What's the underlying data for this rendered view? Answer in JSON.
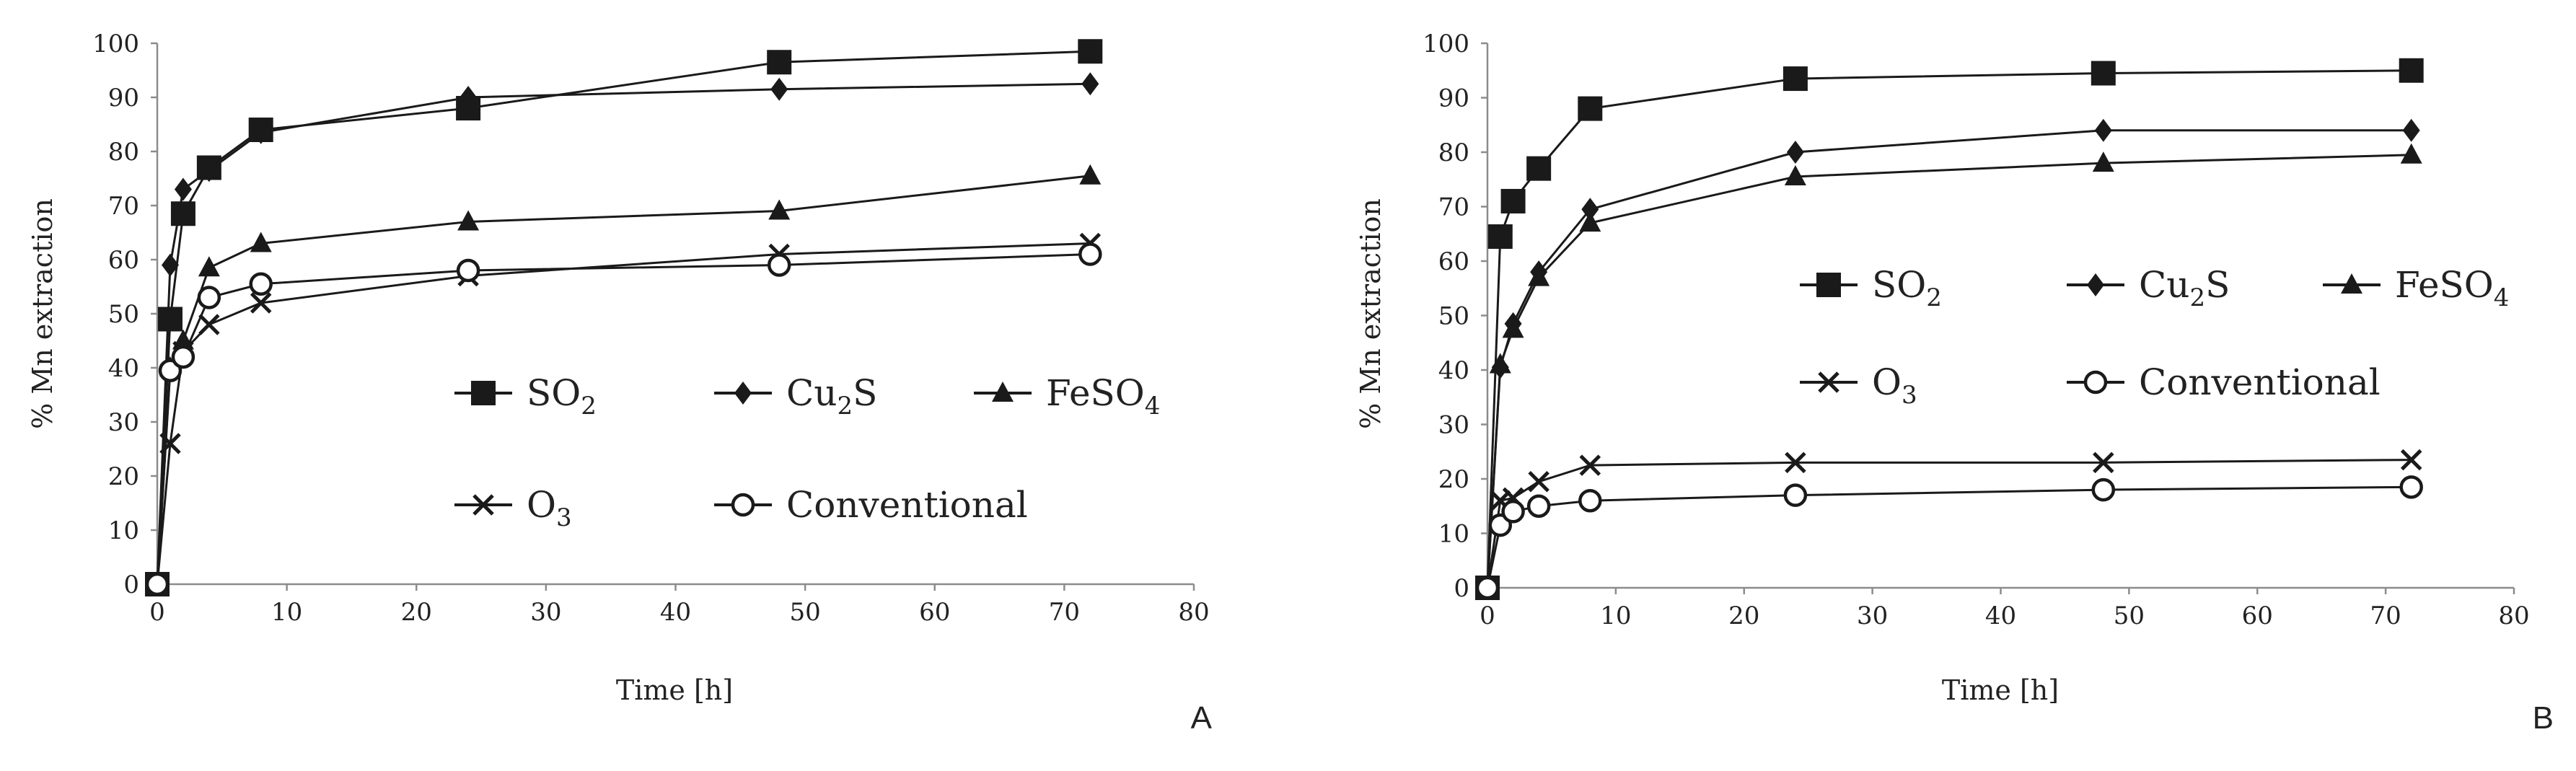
{
  "figure": {
    "panels": [
      "A",
      "B"
    ]
  },
  "chart_data": [
    {
      "type": "line",
      "panel_label": "A",
      "title": "",
      "xlabel": "Time [h]",
      "ylabel": "% Mn extraction",
      "xlim": [
        0,
        80
      ],
      "ylim": [
        0,
        100
      ],
      "xticks": [
        0,
        10,
        20,
        30,
        40,
        50,
        60,
        70,
        80
      ],
      "yticks": [
        0,
        10,
        20,
        30,
        40,
        50,
        60,
        70,
        80,
        90,
        100
      ],
      "grid": false,
      "legend_position": "center-right",
      "series": [
        {
          "name": "SO2",
          "label": "SO",
          "sub": "2",
          "marker": "square",
          "x": [
            0,
            1,
            2,
            4,
            8,
            24,
            48,
            72
          ],
          "y": [
            0,
            49,
            68.5,
            77,
            84,
            88,
            96.5,
            98.5
          ]
        },
        {
          "name": "Cu2S",
          "label": "Cu",
          "sub": "2",
          "suffix": "S",
          "marker": "diamond",
          "x": [
            0,
            1,
            2,
            4,
            8,
            24,
            48,
            72
          ],
          "y": [
            0,
            59,
            73,
            76.5,
            83.5,
            90,
            91.5,
            92.5
          ]
        },
        {
          "name": "FeSO4",
          "label": "FeSO",
          "sub": "4",
          "marker": "triangle",
          "x": [
            0,
            1,
            2,
            4,
            8,
            24,
            48,
            72
          ],
          "y": [
            0,
            40,
            45,
            58.5,
            63,
            67,
            69,
            75.5
          ]
        },
        {
          "name": "O3",
          "label": "O",
          "sub": "3",
          "marker": "x",
          "x": [
            0,
            1,
            2,
            4,
            8,
            24,
            48,
            72
          ],
          "y": [
            0,
            26,
            43,
            48,
            52,
            57,
            61,
            63
          ]
        },
        {
          "name": "Conventional",
          "label": "Conventional",
          "sub": "",
          "marker": "circle",
          "x": [
            0,
            1,
            2,
            4,
            8,
            24,
            48,
            72
          ],
          "y": [
            0,
            39.5,
            42,
            53,
            55.5,
            58,
            59,
            61
          ]
        }
      ]
    },
    {
      "type": "line",
      "panel_label": "B",
      "title": "",
      "xlabel": "Time [h]",
      "ylabel": "% Mn extraction",
      "xlim": [
        0,
        80
      ],
      "ylim": [
        0,
        100
      ],
      "xticks": [
        0,
        10,
        20,
        30,
        40,
        50,
        60,
        70,
        80
      ],
      "yticks": [
        0,
        10,
        20,
        30,
        40,
        50,
        60,
        70,
        80,
        90,
        100
      ],
      "grid": false,
      "legend_position": "center",
      "series": [
        {
          "name": "SO2",
          "label": "SO",
          "sub": "2",
          "marker": "square",
          "x": [
            0,
            1,
            2,
            4,
            8,
            24,
            48,
            72
          ],
          "y": [
            0,
            64.5,
            71,
            77,
            88,
            93.5,
            94.5,
            95
          ]
        },
        {
          "name": "Cu2S",
          "label": "Cu",
          "sub": "2",
          "suffix": "S",
          "marker": "diamond",
          "x": [
            0,
            1,
            2,
            4,
            8,
            24,
            48,
            72
          ],
          "y": [
            0,
            40.5,
            48.5,
            58,
            69.5,
            80,
            84,
            84
          ]
        },
        {
          "name": "FeSO4",
          "label": "FeSO",
          "sub": "4",
          "marker": "triangle",
          "x": [
            0,
            1,
            2,
            4,
            8,
            24,
            48,
            72
          ],
          "y": [
            0,
            41,
            47.5,
            57,
            67,
            75.5,
            78,
            79.5
          ]
        },
        {
          "name": "O3",
          "label": "O",
          "sub": "3",
          "marker": "x",
          "x": [
            0,
            1,
            2,
            4,
            8,
            24,
            48,
            72
          ],
          "y": [
            0,
            16,
            16.5,
            19.5,
            22.5,
            23,
            23,
            23.5
          ]
        },
        {
          "name": "Conventional",
          "label": "Conventional",
          "sub": "",
          "marker": "circle",
          "x": [
            0,
            1,
            2,
            4,
            8,
            24,
            48,
            72
          ],
          "y": [
            0,
            11.5,
            14,
            15,
            16,
            17,
            18,
            18.5
          ]
        }
      ]
    }
  ]
}
